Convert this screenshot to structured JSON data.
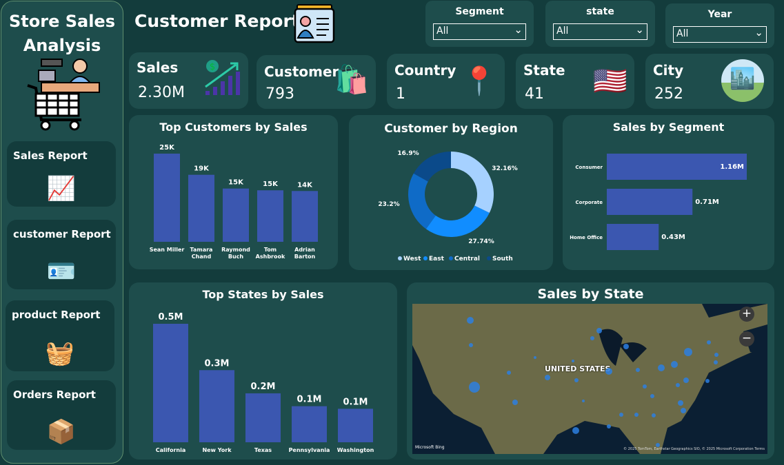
{
  "sidebar": {
    "title": "Store Sales Analysis",
    "logo_icon": "cashier-cart-icon",
    "items": [
      {
        "label": "Sales Report",
        "icon": "sales-growth-icon"
      },
      {
        "label": "customer Report",
        "icon": "id-card-icon"
      },
      {
        "label": "product Report",
        "icon": "shopping-basket-icon"
      },
      {
        "label": "Orders Report",
        "icon": "box-check-icon"
      }
    ]
  },
  "header": {
    "title": "Customer Report",
    "icon": "id-card-icon"
  },
  "filters": [
    {
      "label": "Segment",
      "value": "All"
    },
    {
      "label": "state",
      "value": "All"
    },
    {
      "label": "Year",
      "value": "All"
    }
  ],
  "kpis": [
    {
      "label": "Sales",
      "value": "2.30M",
      "icon": "dollar-growth-icon"
    },
    {
      "label": "Customer",
      "value": "793",
      "icon": "shopper-icon"
    },
    {
      "label": "Country",
      "value": "1",
      "icon": "us-flag-pin-icon"
    },
    {
      "label": "State",
      "value": "41",
      "icon": "us-map-flag-icon"
    },
    {
      "label": "City",
      "value": "252",
      "icon": "city-icon"
    }
  ],
  "colors": {
    "bar": "#3b57b0",
    "background": "#133c3c",
    "panel": "#1e4d4c",
    "region": [
      "#a6d1ff",
      "#118dff",
      "#0f6bc7",
      "#0b4a8a"
    ]
  },
  "chart_data": [
    {
      "type": "bar",
      "title": "Top Customers by Sales",
      "categories": [
        "Sean Miller",
        "Tamara Chand",
        "Raymond Buch",
        "Tom Ashbrook",
        "Adrian Barton"
      ],
      "values": [
        25000,
        19000,
        15100,
        14600,
        14400
      ],
      "data_labels": [
        "25K",
        "19K",
        "15K",
        "15K",
        "14K"
      ]
    },
    {
      "type": "pie",
      "title": "Customer by Region",
      "categories": [
        "West",
        "East",
        "Central",
        "South"
      ],
      "values": [
        32.16,
        27.74,
        23.2,
        16.9
      ],
      "data_labels": [
        "32.16%",
        "27.74%",
        "23.2%",
        "16.9%"
      ],
      "legend": "bottom"
    },
    {
      "type": "bar",
      "orientation": "horizontal",
      "title": "Sales by Segment",
      "categories": [
        "Consumer",
        "Corporate",
        "Home Office"
      ],
      "values": [
        1.16,
        0.71,
        0.43
      ],
      "data_labels": [
        "1.16M",
        "0.71M",
        "0.43M"
      ]
    },
    {
      "type": "bar",
      "title": "Top States by Sales",
      "categories": [
        "California",
        "New York",
        "Texas",
        "Pennsylvania",
        "Washington"
      ],
      "values": [
        0.46,
        0.28,
        0.19,
        0.14,
        0.13
      ],
      "data_labels": [
        "0.5M",
        "0.3M",
        "0.2M",
        "0.1M",
        "0.1M"
      ]
    }
  ],
  "map": {
    "title": "Sales by State",
    "country_label": "UNITED STATES",
    "attribution": "© 2025 TomTom, Earthstar Geographics SIO, © 2025 Microsoft Corporation Terms",
    "provider": "Microsoft Bing",
    "zoom_in": "+",
    "zoom_out": "−"
  }
}
